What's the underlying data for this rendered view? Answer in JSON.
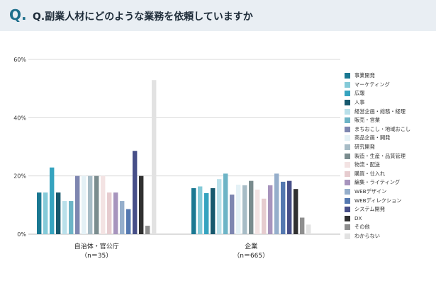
{
  "header": {
    "q_mark": "Q.",
    "title": "Q.副業人材にどのような業務を依頼していますか"
  },
  "chart_data": {
    "type": "bar",
    "title": "Q.副業人材にどのような業務を依頼していますか",
    "ylim": [
      0,
      60
    ],
    "yticks": [
      "0%",
      "20%",
      "40%",
      "60%"
    ],
    "grid": true,
    "legend_position": "right",
    "groups": [
      {
        "label": "自治体・官公庁",
        "sublabel": "（n＝35）"
      },
      {
        "label": "企業",
        "sublabel": "（n＝665）"
      }
    ],
    "series": [
      {
        "name": "事業開発",
        "color": "#1a7892",
        "values": [
          14.3,
          15.8
        ]
      },
      {
        "name": "マーケティング",
        "color": "#84cad8",
        "values": [
          14.3,
          16.4
        ]
      },
      {
        "name": "広報",
        "color": "#35a3bf",
        "values": [
          22.9,
          14.1
        ]
      },
      {
        "name": "人事",
        "color": "#17586d",
        "values": [
          14.3,
          15.8
        ]
      },
      {
        "name": "経営企画・総務・経理",
        "color": "#b9e0ea",
        "values": [
          11.4,
          18.9
        ]
      },
      {
        "name": "販売・営業",
        "color": "#6db4c6",
        "values": [
          11.4,
          20.8
        ]
      },
      {
        "name": "まちおこし・地域おこし",
        "color": "#7e86b0",
        "values": [
          20.0,
          13.6
        ]
      },
      {
        "name": "商品企画・開発",
        "color": "#e4f1f6",
        "values": [
          20.0,
          17.0
        ]
      },
      {
        "name": "研究開発",
        "color": "#a7bcc6",
        "values": [
          20.0,
          16.8
        ]
      },
      {
        "name": "製造・生産・品質管理",
        "color": "#7a8c8e",
        "values": [
          20.0,
          18.3
        ]
      },
      {
        "name": "物流・配送",
        "color": "#f3e3e3",
        "values": [
          20.0,
          15.3
        ]
      },
      {
        "name": "購買・仕入れ",
        "color": "#e6cccf",
        "values": [
          14.3,
          12.2
        ]
      },
      {
        "name": "編集・ライティング",
        "color": "#a794bd",
        "values": [
          14.3,
          16.8
        ]
      },
      {
        "name": "WEBデザイン",
        "color": "#95aecb",
        "values": [
          11.4,
          20.8
        ]
      },
      {
        "name": "WEBディレクション",
        "color": "#5478b0",
        "values": [
          8.6,
          18.0
        ]
      },
      {
        "name": "システム開発",
        "color": "#474f88",
        "values": [
          28.6,
          18.3
        ]
      },
      {
        "name": "DX",
        "color": "#303030",
        "values": [
          20.0,
          15.5
        ]
      },
      {
        "name": "その他",
        "color": "#8e8e8e",
        "values": [
          2.9,
          5.7
        ]
      },
      {
        "name": "わからない",
        "color": "#e2e2e2",
        "values": [
          52.9,
          3.3
        ]
      }
    ]
  }
}
